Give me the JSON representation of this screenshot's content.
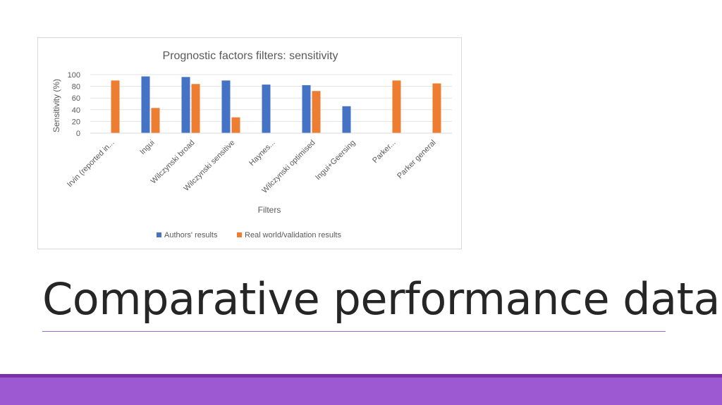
{
  "slide": {
    "title": "Comparative performance data",
    "colors": {
      "accent": "#9c59d1",
      "accent_dark": "#7a2fa8",
      "rule": "#a06ac0"
    }
  },
  "chart_data": {
    "type": "bar",
    "title": "Prognostic factors filters: sensitivity",
    "xlabel": "Filters",
    "ylabel": "Sensitivity (%)",
    "ylim": [
      0,
      100
    ],
    "yticks": [
      0,
      20,
      40,
      60,
      80,
      100
    ],
    "grid": true,
    "legend_position": "bottom",
    "categories": [
      "Irvin (reported in...",
      "Ingui",
      "Wilczynski broad",
      "Wilczynski sensitive",
      "Haynes...",
      "Wilczynski optimised",
      "Ingui+Geersing",
      "Parker...",
      "Parker general"
    ],
    "series": [
      {
        "name": "Authors' results",
        "color": "#4472c4",
        "values": [
          null,
          97,
          96,
          90,
          83,
          82,
          46,
          null,
          null
        ]
      },
      {
        "name": "Real world/validation results",
        "color": "#ed7d31",
        "values": [
          90,
          43,
          84,
          27,
          null,
          72,
          null,
          90,
          85
        ]
      }
    ]
  }
}
